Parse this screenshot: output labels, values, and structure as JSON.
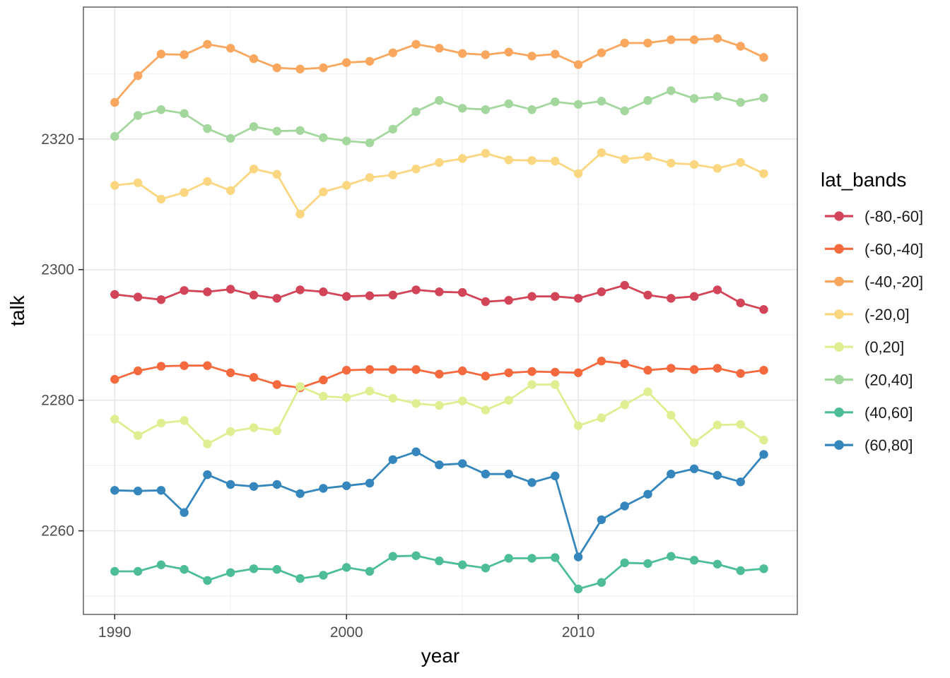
{
  "chart": {
    "ylabel": "talk",
    "xlabel": "year",
    "legend_title": "lat_bands"
  },
  "chart_data": {
    "type": "line",
    "title": "",
    "xlabel": "year",
    "ylabel": "talk",
    "grid": true,
    "legend_position": "right",
    "legend_title": "lat_bands",
    "xlim": [
      1988.65,
      2019.45
    ],
    "ylim": [
      2247.2,
      2340.2
    ],
    "x_major_ticks": [
      1990,
      2000,
      2010
    ],
    "x_minor_ticks": [
      1995,
      2005,
      2015
    ],
    "y_major_ticks": [
      2260,
      2280,
      2300,
      2320
    ],
    "y_minor_ticks": [
      2250,
      2270,
      2290,
      2310,
      2330
    ],
    "x": [
      1990,
      1991,
      1992,
      1993,
      1994,
      1995,
      1996,
      1997,
      1998,
      1999,
      2000,
      2001,
      2002,
      2003,
      2004,
      2005,
      2006,
      2007,
      2008,
      2009,
      2010,
      2011,
      2012,
      2013,
      2014,
      2015,
      2016,
      2017,
      2018
    ],
    "series": [
      {
        "name": "(-80,-60]",
        "color": "#d24457",
        "values": [
          2296.2,
          2295.8,
          2295.4,
          2296.8,
          2296.6,
          2297.0,
          2296.1,
          2295.6,
          2296.9,
          2296.6,
          2295.9,
          2296.0,
          2296.1,
          2296.9,
          2296.6,
          2296.5,
          2295.1,
          2295.3,
          2295.9,
          2295.9,
          2295.6,
          2296.6,
          2297.6,
          2296.1,
          2295.6,
          2295.9,
          2296.9,
          2294.9,
          2293.9
        ]
      },
      {
        "name": "(-60,-40]",
        "color": "#f4693e",
        "values": [
          2283.2,
          2284.5,
          2285.2,
          2285.3,
          2285.3,
          2284.2,
          2283.5,
          2282.4,
          2281.9,
          2283.1,
          2284.6,
          2284.7,
          2284.7,
          2284.7,
          2284.0,
          2284.5,
          2283.7,
          2284.2,
          2284.4,
          2284.3,
          2284.2,
          2286.0,
          2285.6,
          2284.6,
          2284.9,
          2284.7,
          2284.9,
          2284.1,
          2284.6
        ]
      },
      {
        "name": "(-40,-20]",
        "color": "#f9a75e",
        "values": [
          2325.6,
          2329.7,
          2333.0,
          2332.9,
          2334.5,
          2333.9,
          2332.3,
          2330.9,
          2330.7,
          2330.9,
          2331.7,
          2331.9,
          2333.2,
          2334.5,
          2333.9,
          2333.1,
          2332.9,
          2333.3,
          2332.7,
          2333.0,
          2331.4,
          2333.2,
          2334.7,
          2334.7,
          2335.2,
          2335.2,
          2335.4,
          2334.2,
          2332.5
        ]
      },
      {
        "name": "(-20,0]",
        "color": "#fbd681",
        "values": [
          2312.9,
          2313.3,
          2310.8,
          2311.8,
          2313.5,
          2312.1,
          2315.4,
          2314.6,
          2308.5,
          2311.9,
          2312.9,
          2314.1,
          2314.5,
          2315.4,
          2316.4,
          2317.0,
          2317.8,
          2316.8,
          2316.7,
          2316.6,
          2314.7,
          2317.9,
          2316.9,
          2317.3,
          2316.3,
          2316.1,
          2315.5,
          2316.4,
          2314.7
        ]
      },
      {
        "name": "(0,20]",
        "color": "#dfee90",
        "values": [
          2277.1,
          2274.6,
          2276.5,
          2276.9,
          2273.3,
          2275.2,
          2275.8,
          2275.3,
          2282.1,
          2280.6,
          2280.4,
          2281.4,
          2280.3,
          2279.5,
          2279.2,
          2279.9,
          2278.5,
          2280.0,
          2282.4,
          2282.4,
          2276.1,
          2277.3,
          2279.3,
          2281.3,
          2277.7,
          2273.5,
          2276.2,
          2276.3,
          2273.9
        ]
      },
      {
        "name": "(20,40]",
        "color": "#a3d79e",
        "values": [
          2320.4,
          2323.6,
          2324.5,
          2323.9,
          2321.6,
          2320.1,
          2321.9,
          2321.2,
          2321.3,
          2320.2,
          2319.7,
          2319.4,
          2321.5,
          2324.2,
          2325.9,
          2324.7,
          2324.5,
          2325.4,
          2324.5,
          2325.7,
          2325.3,
          2325.8,
          2324.3,
          2325.9,
          2327.4,
          2326.2,
          2326.5,
          2325.6,
          2326.3
        ]
      },
      {
        "name": "(40,60]",
        "color": "#4dbd97",
        "values": [
          2253.8,
          2253.8,
          2254.8,
          2254.1,
          2252.4,
          2253.6,
          2254.2,
          2254.1,
          2252.7,
          2253.2,
          2254.4,
          2253.8,
          2256.1,
          2256.2,
          2255.4,
          2254.8,
          2254.3,
          2255.8,
          2255.8,
          2255.9,
          2251.1,
          2252.1,
          2255.1,
          2255.0,
          2256.1,
          2255.5,
          2254.9,
          2253.9,
          2254.2
        ]
      },
      {
        "name": "(60,80]",
        "color": "#3486bc",
        "values": [
          2266.2,
          2266.1,
          2266.2,
          2262.8,
          2268.6,
          2267.1,
          2266.8,
          2267.1,
          2265.7,
          2266.5,
          2266.9,
          2267.3,
          2270.9,
          2272.1,
          2270.1,
          2270.3,
          2268.7,
          2268.7,
          2267.4,
          2268.4,
          2256.0,
          2261.7,
          2263.8,
          2265.6,
          2268.7,
          2269.5,
          2268.5,
          2267.5,
          2271.7
        ]
      }
    ],
    "style": {
      "panel_background": "#ffffff",
      "panel_border": "#474747",
      "grid_major": "#e6e6e6",
      "grid_minor": "#f2f2f2",
      "tick_color": "#333333",
      "point_radius": 6.2,
      "line_width": 2.8
    }
  }
}
